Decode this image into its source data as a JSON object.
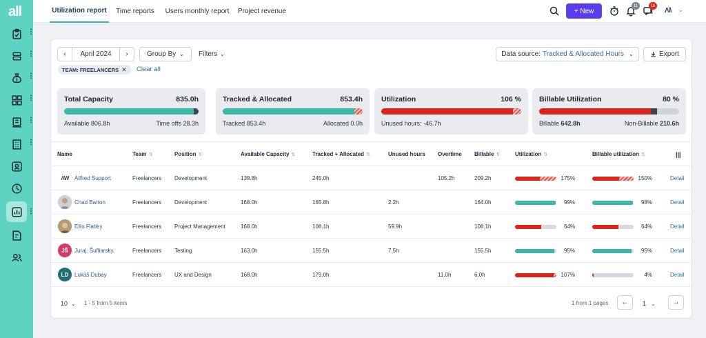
{
  "app": {
    "logo": "all"
  },
  "tabs": [
    "Utilization report",
    "Time reports",
    "Users monthly report",
    "Project revenue"
  ],
  "header": {
    "new_label": "+ New",
    "notifications_badge": "11",
    "messages_badge": "16",
    "brand_mark": "Λ\\\\",
    "colors": {
      "accent": "#5b3df0",
      "teal": "#3bb8a6",
      "red": "#d9261c",
      "sidebar": "#5fd3c2"
    }
  },
  "toolbar": {
    "period": "April 2024",
    "group_by": "Group By",
    "filters": "Filters",
    "data_source_label": "Data source:",
    "data_source_value": "Tracked & Allocated Hours",
    "export": "Export",
    "filter_chip": "TEAM: FREELANCERS",
    "clear_all": "Clear all"
  },
  "summary": {
    "total_capacity": {
      "title": "Total Capacity",
      "value": "835.0h",
      "left_label": "Available",
      "left_value": "806.8h",
      "right_label": "Time offs",
      "right_value": "28.3h",
      "fill": 0.966
    },
    "tracked": {
      "title": "Tracked & Allocated",
      "value": "853.4h",
      "left_label": "Tracked",
      "left_value": "853.4h",
      "right_label": "Allocated",
      "right_value": "0.0h",
      "fill": 1.0
    },
    "utilization": {
      "title": "Utilization",
      "value": "106 %",
      "left_label": "Unused hours:",
      "left_value": "-46.7h",
      "fill": 1.0
    },
    "billable": {
      "title": "Billable Utilization",
      "value": "80 %",
      "left_label": "Billable",
      "left_value": "642.8h",
      "right_label": "Non-Billable",
      "right_value": "210.6h",
      "fill": 0.8
    }
  },
  "table": {
    "columns": [
      "Name",
      "Team",
      "Position",
      "Available Capacity",
      "Tracked + Allocated",
      "Unused hours",
      "Overtime",
      "Billable",
      "Utilization",
      "Billable utilization"
    ],
    "detail_label": "Detail",
    "rows": [
      {
        "name": "Allfred Support",
        "avatar": "ΛW",
        "team": "Freelancers",
        "position": "Development",
        "available": "139.8h",
        "tracked": "245.0h",
        "unused": "",
        "overtime": "105.2h",
        "billable": "209.2h",
        "util": "175%",
        "util_value": 175,
        "butil": "150%",
        "butil_value": 150
      },
      {
        "name": "Chad Barton",
        "avatar": "",
        "team": "Freelancers",
        "position": "Development",
        "available": "168.0h",
        "tracked": "165.8h",
        "unused": "2.2h",
        "overtime": "",
        "billable": "164.0h",
        "util": "99%",
        "util_value": 99,
        "butil": "98%",
        "butil_value": 98
      },
      {
        "name": "Ellis Flatley",
        "avatar": "",
        "team": "Freelancers",
        "position": "Project Management",
        "available": "168.0h",
        "tracked": "108.1h",
        "unused": "59.9h",
        "overtime": "",
        "billable": "108.1h",
        "util": "64%",
        "util_value": 64,
        "butil": "64%",
        "butil_value": 64
      },
      {
        "name": "Juraj. Šufliarsky.",
        "avatar": "JŠ",
        "team": "Freelancers",
        "position": "Testing",
        "available": "163.0h",
        "tracked": "155.5h",
        "unused": "7.5h",
        "overtime": "",
        "billable": "155.5h",
        "util": "95%",
        "util_value": 95,
        "butil": "95%",
        "butil_value": 95
      },
      {
        "name": "Lukáš Dubay",
        "avatar": "LD",
        "team": "Freelancers",
        "position": "UX and Design",
        "available": "168.0h",
        "tracked": "179.0h",
        "unused": "",
        "overtime": "11.0h",
        "billable": "6.0h",
        "util": "107%",
        "util_value": 107,
        "butil": "4%",
        "butil_value": 4
      }
    ]
  },
  "footer": {
    "page_size": "10",
    "items_text": "1 - 5 from 5 items",
    "pages_text": "1 from 1 pages",
    "current_page": "1"
  }
}
